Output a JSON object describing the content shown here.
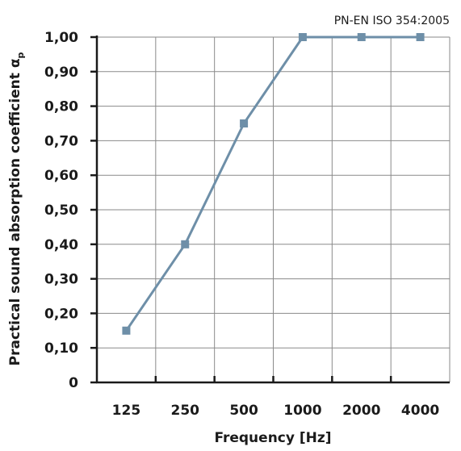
{
  "chart_data": {
    "type": "line",
    "standard_label": "PN-EN ISO 354:2005",
    "ylabel": "Practical sound absorption coefficient α",
    "ylabel_subscript": "p",
    "xlabel": "Frequency [Hz]",
    "categories": [
      "125",
      "250",
      "500",
      "1000",
      "2000",
      "4000"
    ],
    "series": [
      {
        "values": [
          0.15,
          0.4,
          0.75,
          1.0,
          1.0,
          1.0
        ]
      }
    ],
    "yticks": [
      "0",
      "0,10",
      "0,20",
      "0,30",
      "0,40",
      "0,50",
      "0,60",
      "0,70",
      "0,80",
      "0,90",
      "1,00"
    ],
    "ylim": [
      0,
      1.0
    ],
    "grid": true,
    "colors": {
      "series": "#6e8fa8",
      "marker": "#6e8fa8"
    }
  }
}
